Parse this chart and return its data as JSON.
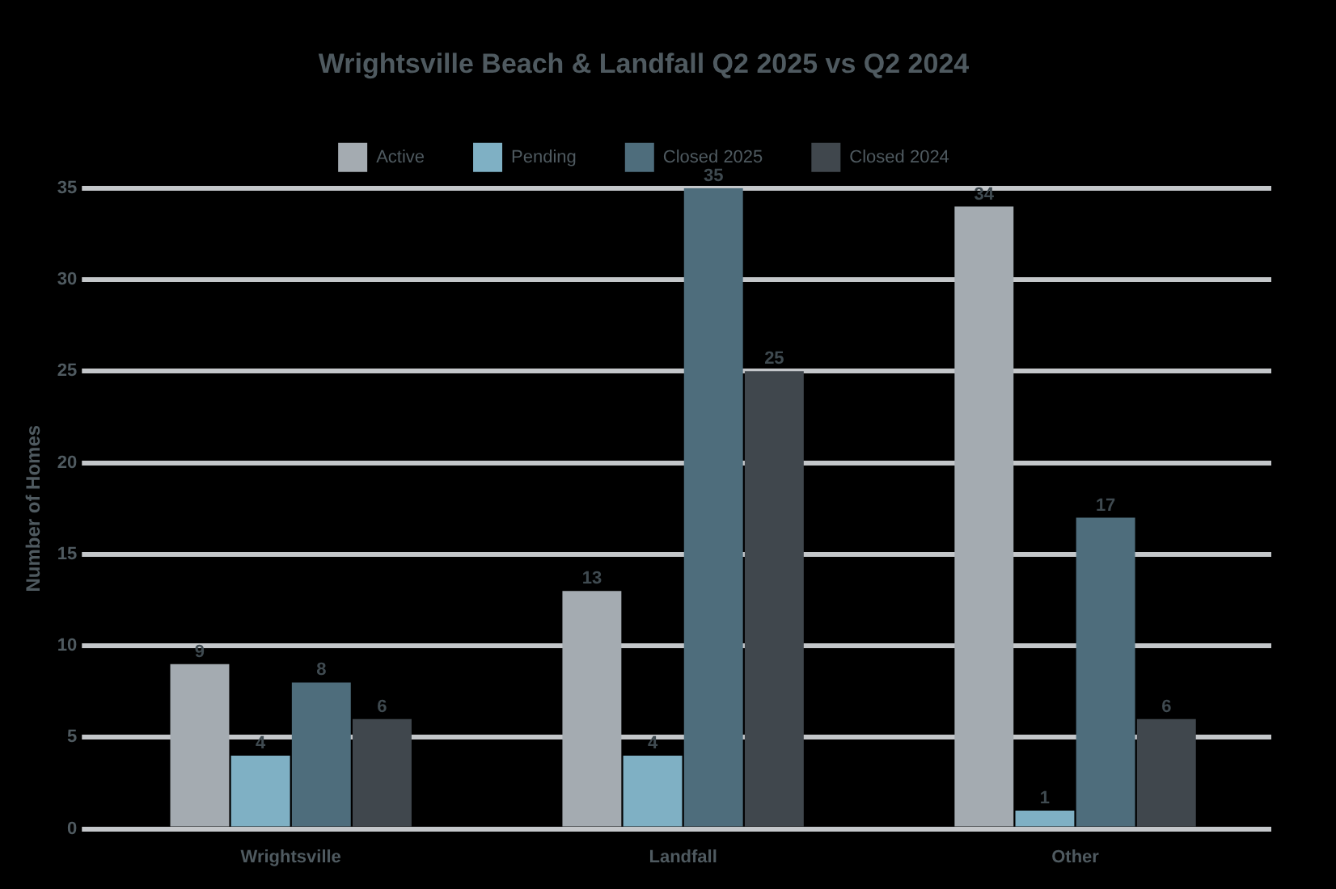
{
  "chart_data": {
    "type": "bar",
    "title": "Wrightsville Beach & Landfall Q2 2025 vs Q2 2024",
    "ylabel": "Number of Homes",
    "categories": [
      "Wrightsville",
      "Landfall",
      "Other"
    ],
    "series": [
      {
        "name": "Active",
        "color": "#a4abb1",
        "values": [
          9,
          13,
          34
        ]
      },
      {
        "name": "Pending",
        "color": "#7fb0c4",
        "values": [
          4,
          4,
          1
        ]
      },
      {
        "name": "Closed 2025",
        "color": "#4e6d7c",
        "values": [
          8,
          35,
          17
        ]
      },
      {
        "name": "Closed 2024",
        "color": "#40474d",
        "values": [
          6,
          25,
          6
        ]
      }
    ],
    "ylim": [
      0,
      35
    ],
    "yticks": [
      0,
      5,
      10,
      15,
      20,
      25,
      30,
      35
    ],
    "grid": "y",
    "legend": "top",
    "data_labels": true
  }
}
